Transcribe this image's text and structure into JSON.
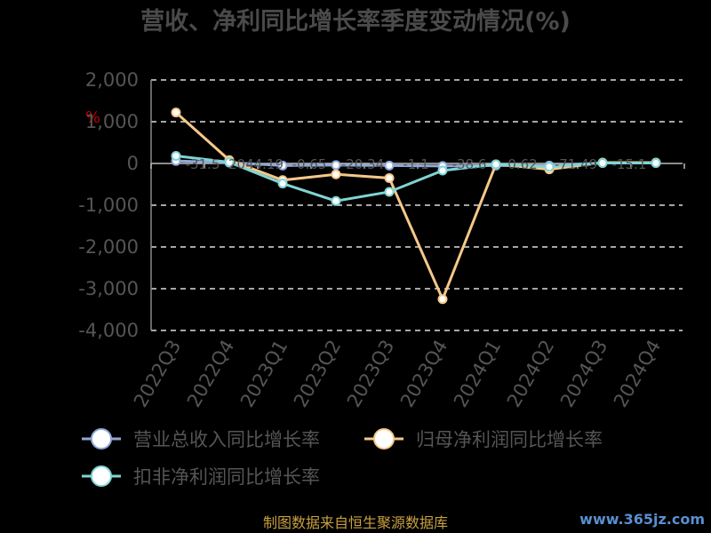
{
  "chart_data": {
    "type": "line",
    "title": "营收、净利同比增长率季度变动情况(%)",
    "unit_label": "%",
    "categories": [
      "2022Q3",
      "2022Q4",
      "2023Q1",
      "2023Q2",
      "2023Q3",
      "2023Q4",
      "2024Q1",
      "2024Q2",
      "2024Q3",
      "2024Q4"
    ],
    "ylim": [
      -4000,
      2000
    ],
    "yticks": [
      2000,
      1000,
      0,
      -1000,
      -2000,
      -3000,
      -4000
    ],
    "ytick_labels": [
      "2,000",
      "1,000",
      "0",
      "-1,000",
      "-2,000",
      "-3,000",
      "-4,000"
    ],
    "grid": true,
    "legend_position": "bottom",
    "series": [
      {
        "name": "营业总收入同比增长率",
        "color": "#8fa8d8",
        "values": [
          60,
          20,
          -50,
          -40,
          -50,
          -60,
          -50,
          -50,
          10,
          10
        ]
      },
      {
        "name": "归母净利润同比增长率",
        "color": "#f5c88a",
        "values": [
          1220,
          80,
          -400,
          -260,
          -350,
          -3250,
          -20,
          -140,
          20,
          20
        ]
      },
      {
        "name": "扣非净利润同比增长率",
        "color": "#80d4d4",
        "values": [
          180,
          30,
          -480,
          -900,
          -680,
          -170,
          -20,
          -80,
          10,
          10
        ]
      }
    ],
    "data_labels": [
      "-31.5",
      "2044.19",
      "-0.65",
      "-20.34",
      "-1.1",
      "-38.6",
      "0.62",
      "-71.49",
      "-15.1"
    ]
  },
  "footer": {
    "source": "制图数据来自恒生聚源数据库",
    "watermark": "www.365jz.com"
  }
}
